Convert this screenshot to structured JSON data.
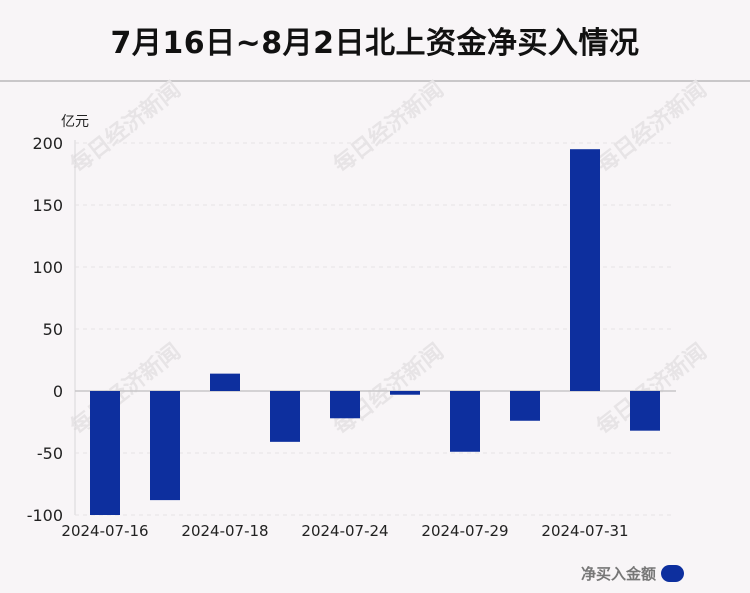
{
  "title": "7月16日~8月2日北上资金净买入情况",
  "unit_label": "亿元",
  "watermark": "每日经济新闻",
  "legend": {
    "label": "净买入金额",
    "color": "#0d2f9e"
  },
  "chart_data": {
    "type": "bar",
    "title": "7月16日~8月2日北上资金净买入情况",
    "ylabel": "亿元",
    "ylim": [
      -100,
      200
    ],
    "yticks": [
      200,
      150,
      100,
      50,
      0,
      -50,
      -100
    ],
    "tick_labels": [
      "2024-07-16",
      "",
      "2024-07-18",
      "",
      "2024-07-24",
      "",
      "2024-07-29",
      "",
      "2024-07-31",
      ""
    ],
    "series": [
      {
        "name": "净买入金额",
        "values": [
          -100,
          -88,
          14,
          -41,
          -22,
          -3,
          -49,
          -24,
          195,
          -32
        ]
      }
    ],
    "grid": true,
    "legend_position": "bottom-right",
    "color": "#0d2f9e"
  }
}
